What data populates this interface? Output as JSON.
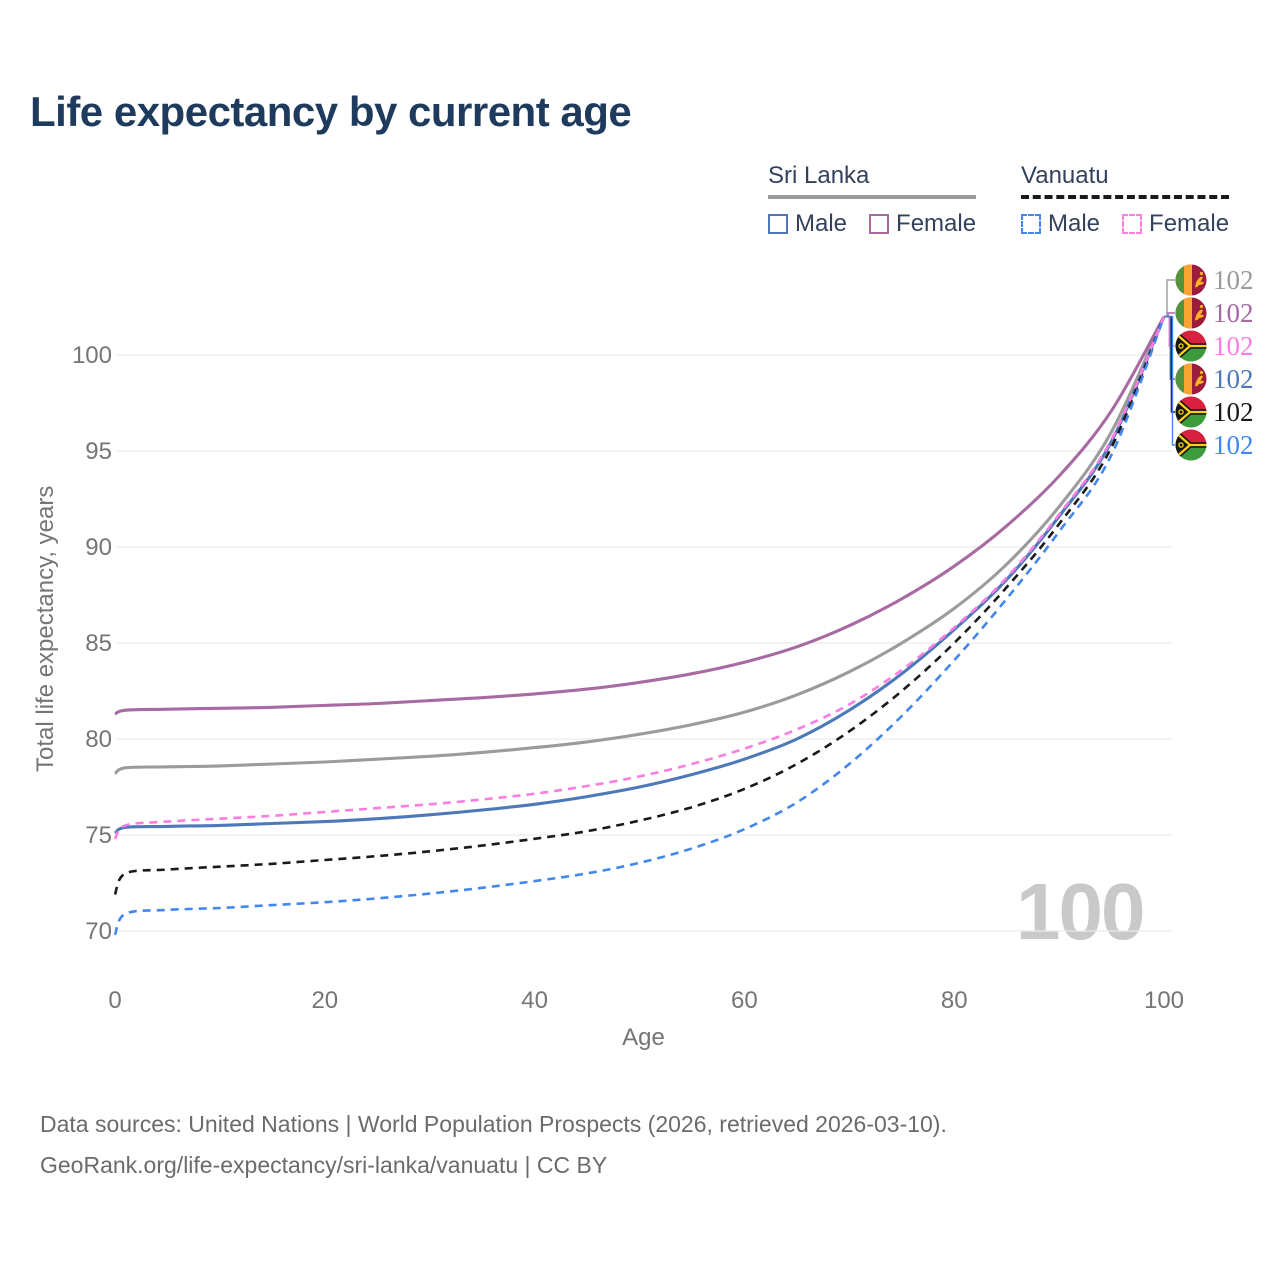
{
  "header": {
    "title": "Life expectancy by current age"
  },
  "legend": {
    "groups": [
      {
        "name": "Sri Lanka",
        "line_style": "solid",
        "line_color": "#9b9b9b",
        "entries": [
          {
            "label": "Male",
            "color": "#4d79b9",
            "dashed": false
          },
          {
            "label": "Female",
            "color": "#a76aa3",
            "dashed": false
          }
        ]
      },
      {
        "name": "Vanuatu",
        "line_style": "dashed",
        "line_color": "#1a1a1a",
        "entries": [
          {
            "label": "Male",
            "color": "#4287ef",
            "dashed": true
          },
          {
            "label": "Female",
            "color": "#fa7de2",
            "dashed": true
          }
        ]
      }
    ]
  },
  "chart_data": {
    "type": "line",
    "title": "Life expectancy by current age",
    "xlabel": "Age",
    "ylabel": "Total life expectancy, years",
    "x_ticks": [
      0,
      20,
      40,
      60,
      80,
      100
    ],
    "y_ticks": [
      70,
      75,
      80,
      85,
      90,
      95,
      100
    ],
    "x_range": [
      0,
      100
    ],
    "y_range": [
      68,
      102.5
    ],
    "grid": "horizontal",
    "legend_position": "top-right",
    "age_indicator": "100",
    "x": [
      0,
      1,
      5,
      10,
      15,
      20,
      25,
      30,
      35,
      40,
      45,
      50,
      55,
      60,
      65,
      70,
      75,
      80,
      85,
      90,
      95,
      100
    ],
    "series": [
      {
        "name": "Sri Lanka",
        "flag": "sri-lanka",
        "color": "#9b9b9b",
        "dashed": false,
        "end_label": "102",
        "values": [
          78.2,
          78.5,
          78.55,
          78.6,
          78.7,
          78.8,
          78.95,
          79.1,
          79.3,
          79.55,
          79.85,
          80.25,
          80.75,
          81.4,
          82.3,
          83.5,
          85.0,
          86.8,
          89.1,
          92.1,
          96.0,
          102
        ]
      },
      {
        "name": "Sri Lanka Female",
        "flag": "sri-lanka",
        "color": "#a76aa3",
        "dashed": false,
        "end_label": "102",
        "values": [
          81.3,
          81.5,
          81.55,
          81.6,
          81.65,
          81.75,
          81.85,
          82.0,
          82.15,
          82.35,
          82.6,
          82.95,
          83.4,
          84.0,
          84.8,
          85.9,
          87.3,
          89.0,
          91.1,
          93.7,
          97.1,
          102
        ]
      },
      {
        "name": "Vanuatu Female",
        "flag": "vanuatu",
        "color": "#fa7de2",
        "dashed": true,
        "end_label": "102",
        "values": [
          74.8,
          75.5,
          75.7,
          75.85,
          76.0,
          76.2,
          76.4,
          76.6,
          76.85,
          77.15,
          77.55,
          78.05,
          78.7,
          79.5,
          80.5,
          81.8,
          83.6,
          85.8,
          88.4,
          91.7,
          95.6,
          102
        ]
      },
      {
        "name": "Sri Lanka Male",
        "flag": "sri-lanka",
        "color": "#4d79b9",
        "dashed": false,
        "end_label": "102",
        "values": [
          75.1,
          75.4,
          75.45,
          75.5,
          75.6,
          75.7,
          75.85,
          76.05,
          76.3,
          76.6,
          77.0,
          77.5,
          78.15,
          78.95,
          80.0,
          81.5,
          83.4,
          85.7,
          88.3,
          91.6,
          95.5,
          102
        ]
      },
      {
        "name": "Vanuatu",
        "flag": "vanuatu",
        "color": "#1a1a1a",
        "dashed": true,
        "end_label": "102",
        "values": [
          71.9,
          73.0,
          73.2,
          73.35,
          73.5,
          73.7,
          73.9,
          74.15,
          74.45,
          74.8,
          75.2,
          75.75,
          76.45,
          77.4,
          78.7,
          80.4,
          82.5,
          85.0,
          87.9,
          91.2,
          95.2,
          102
        ]
      },
      {
        "name": "Vanuatu Male",
        "flag": "vanuatu",
        "color": "#4287ef",
        "dashed": true,
        "end_label": "102",
        "values": [
          69.8,
          70.9,
          71.1,
          71.2,
          71.35,
          71.5,
          71.7,
          71.95,
          72.25,
          72.6,
          73.0,
          73.55,
          74.3,
          75.3,
          76.7,
          78.7,
          81.2,
          84.1,
          87.3,
          90.8,
          94.8,
          102
        ]
      }
    ]
  },
  "footer": {
    "line1": "Data sources: United Nations | World Population Prospects (2026, retrieved 2026-03-10).",
    "line2": "GeoRank.org/life-expectancy/sri-lanka/vanuatu | CC BY"
  }
}
